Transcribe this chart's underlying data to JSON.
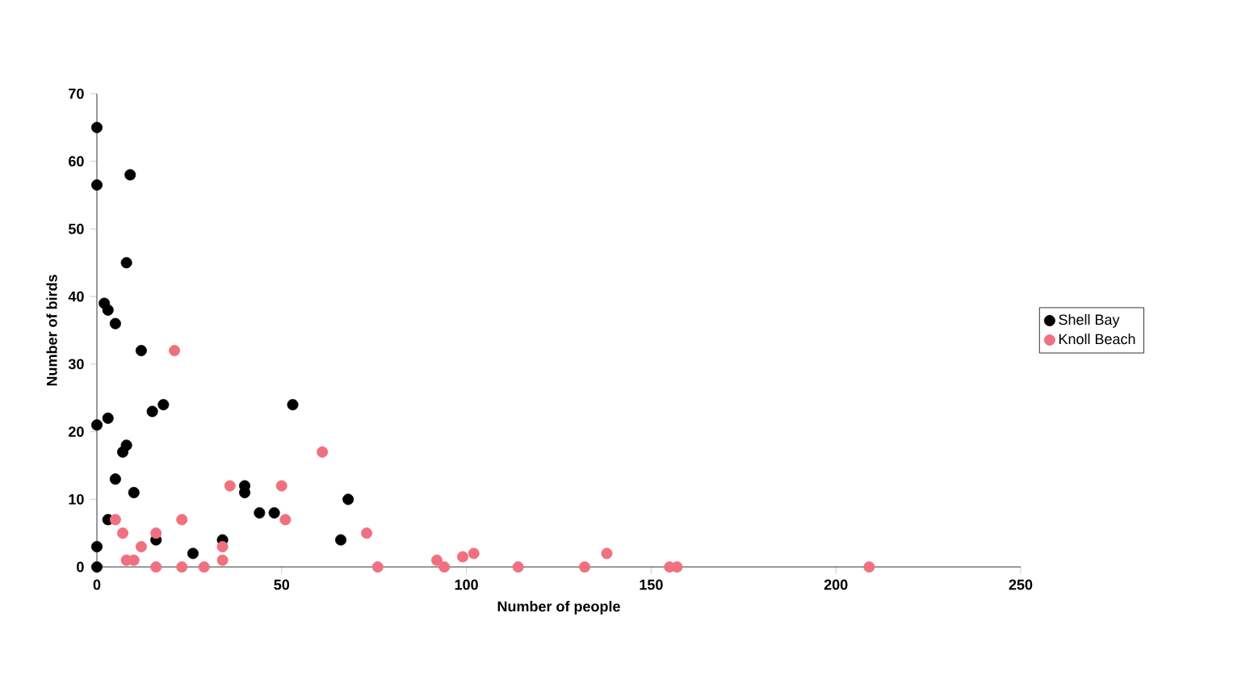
{
  "chart_data": {
    "type": "scatter",
    "xlabel": "Number of people",
    "ylabel": "Number of birds",
    "xlim": [
      0,
      250
    ],
    "ylim": [
      0,
      70
    ],
    "xticks": [
      0,
      50,
      100,
      150,
      200,
      250
    ],
    "yticks": [
      0,
      10,
      20,
      30,
      40,
      50,
      60,
      70
    ],
    "grid": false,
    "legend": "right",
    "series": [
      {
        "name": "Shell Bay",
        "color": "#000000",
        "x": [
          0,
          0,
          9,
          8,
          2,
          3,
          5,
          12,
          15,
          18,
          0,
          3,
          7,
          8,
          5,
          10,
          3,
          0,
          0,
          16,
          26,
          34,
          40,
          40,
          44,
          48,
          53,
          66,
          68
        ],
        "values": [
          65,
          56.5,
          58,
          45,
          39,
          38,
          36,
          32,
          23,
          24,
          21,
          22,
          17,
          18,
          13,
          11,
          7,
          3,
          0,
          4,
          2,
          4,
          11,
          12,
          8,
          8,
          24,
          4,
          10
        ]
      },
      {
        "name": "Knoll Beach",
        "color": "#f07080",
        "x": [
          21,
          5,
          7,
          8,
          10,
          12,
          16,
          16,
          23,
          29,
          23,
          34,
          34,
          36,
          50,
          51,
          61,
          73,
          76,
          92,
          94,
          99,
          102,
          114,
          132,
          138,
          155,
          157,
          209
        ],
        "values": [
          32,
          7,
          5,
          1,
          1,
          3,
          5,
          0,
          0,
          0,
          7,
          3,
          1,
          12,
          12,
          7,
          17,
          5,
          0,
          1,
          0,
          1.5,
          2,
          0,
          0,
          2,
          0,
          0,
          0
        ]
      }
    ]
  }
}
